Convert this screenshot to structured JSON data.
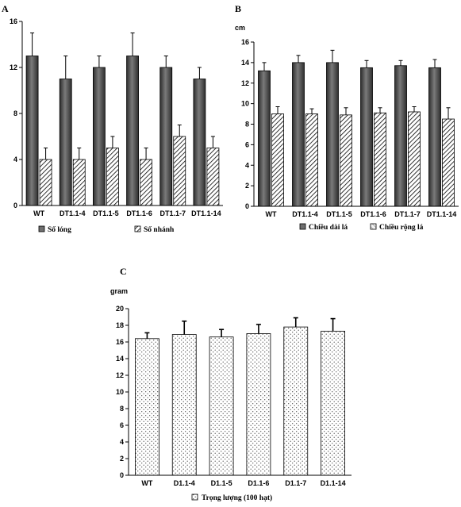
{
  "chart_data": [
    {
      "panel": "A",
      "type": "bar",
      "ylabel": "",
      "ylim": [
        0,
        16
      ],
      "yticks": [
        0,
        4,
        8,
        12,
        16
      ],
      "categories": [
        "WT",
        "DT1.1-4",
        "DT1.1-5",
        "DT1.1-6",
        "DT1.1-7",
        "DT1.1-14"
      ],
      "series": [
        {
          "name": "Số lóng",
          "fill": "dark",
          "values": [
            13,
            11,
            12,
            13,
            12,
            11
          ],
          "errors": [
            2,
            2,
            1,
            2,
            1,
            1
          ]
        },
        {
          "name": "Số nhánh",
          "fill": "hatch",
          "values": [
            4,
            4,
            5,
            4,
            6,
            5
          ],
          "errors": [
            1,
            1,
            1,
            1,
            1,
            1
          ]
        }
      ]
    },
    {
      "panel": "B",
      "type": "bar",
      "ylabel": "cm",
      "ylim": [
        0,
        16
      ],
      "yticks": [
        0,
        2,
        4,
        6,
        8,
        10,
        12,
        14,
        16
      ],
      "categories": [
        "WT",
        "DT1.1-4",
        "DT1.1-5",
        "DT1.1-6",
        "DT1.1-7",
        "DT1.1-14"
      ],
      "series": [
        {
          "name": "Chiều dài lá",
          "fill": "dark",
          "values": [
            13.2,
            14.0,
            14.0,
            13.5,
            13.7,
            13.5
          ],
          "errors": [
            0.8,
            0.7,
            1.2,
            0.7,
            0.5,
            0.8
          ]
        },
        {
          "name": "Chiều rộng lá",
          "fill": "hatch",
          "values": [
            9.0,
            9.0,
            8.9,
            9.1,
            9.2,
            8.5
          ],
          "errors": [
            0.7,
            0.5,
            0.7,
            0.5,
            0.5,
            1.1
          ]
        }
      ]
    },
    {
      "panel": "C",
      "type": "bar",
      "ylabel": "gram",
      "ylim": [
        0,
        20
      ],
      "yticks": [
        0,
        2,
        4,
        6,
        8,
        10,
        12,
        14,
        16,
        18,
        20
      ],
      "categories": [
        "WT",
        "D1.1-4",
        "D1.1-5",
        "D1.1-6",
        "D1.1-7",
        "D1.1-14"
      ],
      "series": [
        {
          "name": "Trọng lượng (100 hạt)",
          "fill": "dots",
          "values": [
            16.4,
            16.9,
            16.6,
            17.0,
            17.8,
            17.3
          ],
          "errors": [
            0.7,
            1.6,
            0.9,
            1.1,
            1.1,
            1.5
          ]
        }
      ]
    }
  ]
}
